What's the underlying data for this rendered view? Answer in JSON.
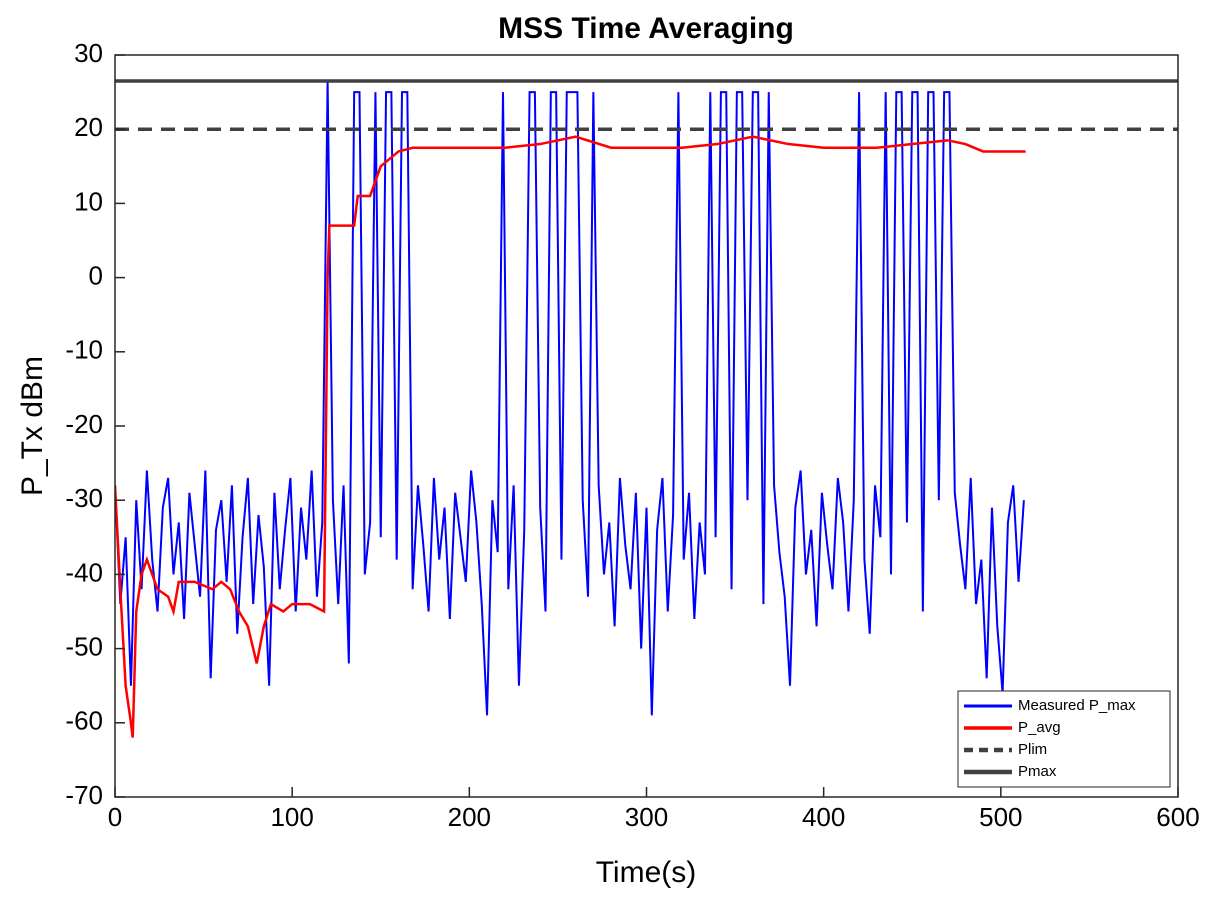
{
  "chart_data": {
    "type": "line",
    "title": "MSS Time Averaging",
    "x_label": "Time(s)",
    "y_label": "P_Tx dBm",
    "xlim": [
      0,
      600
    ],
    "xticks": [
      0,
      100,
      200,
      300,
      400,
      500,
      600
    ],
    "ylim": [
      -70,
      30
    ],
    "yticks": [
      -70,
      -60,
      -50,
      -40,
      -30,
      -20,
      -10,
      0,
      10,
      20,
      30
    ],
    "grid": false,
    "legend": "lower right",
    "series": [
      {
        "name": "Measured P_max",
        "color": "#0000ff",
        "line_style": "solid",
        "x": [
          0,
          3,
          6,
          9,
          12,
          15,
          18,
          21,
          24,
          27,
          30,
          33,
          36,
          39,
          42,
          45,
          48,
          51,
          54,
          57,
          60,
          63,
          66,
          69,
          72,
          75,
          78,
          81,
          84,
          87,
          90,
          93,
          96,
          99,
          102,
          105,
          108,
          111,
          114,
          117,
          120,
          123,
          126,
          129,
          132,
          135,
          138,
          141,
          144,
          147,
          150,
          153,
          156,
          159,
          162,
          165,
          168,
          171,
          174,
          177,
          180,
          183,
          186,
          189,
          192,
          195,
          198,
          201,
          204,
          207,
          210,
          213,
          216,
          219,
          222,
          225,
          228,
          231,
          234,
          237,
          240,
          243,
          246,
          249,
          252,
          255,
          258,
          261,
          264,
          267,
          270,
          273,
          276,
          279,
          282,
          285,
          288,
          291,
          294,
          297,
          300,
          303,
          306,
          309,
          312,
          315,
          318,
          321,
          324,
          327,
          330,
          333,
          336,
          339,
          342,
          345,
          348,
          351,
          354,
          357,
          360,
          363,
          366,
          369,
          372,
          375,
          378,
          381,
          384,
          387,
          390,
          393,
          396,
          399,
          402,
          405,
          408,
          411,
          414,
          417,
          420,
          423,
          426,
          429,
          432,
          435,
          438,
          441,
          444,
          447,
          450,
          453,
          456,
          459,
          462,
          465,
          468,
          471,
          474,
          477,
          480,
          483,
          486,
          489,
          492,
          495,
          498,
          501,
          504,
          507,
          510,
          513
        ],
        "values": [
          -28,
          -44,
          -35,
          -55,
          -30,
          -42,
          -26,
          -38,
          -45,
          -31,
          -27,
          -40,
          -33,
          -46,
          -29,
          -36,
          -43,
          -26,
          -54,
          -34,
          -30,
          -41,
          -28,
          -48,
          -35,
          -27,
          -44,
          -32,
          -39,
          -55,
          -29,
          -42,
          -34,
          -27,
          -45,
          -31,
          -38,
          -26,
          -43,
          -33,
          26.5,
          -30,
          -44,
          -28,
          -52,
          25,
          25,
          -40,
          -33,
          25,
          -35,
          25,
          25,
          -38,
          25,
          25,
          -42,
          -28,
          -36,
          -45,
          -27,
          -38,
          -31,
          -46,
          -29,
          -35,
          -41,
          -26,
          -33,
          -44,
          -59,
          -30,
          -37,
          25,
          -42,
          -28,
          -55,
          -34,
          25,
          25,
          -31,
          -45,
          25,
          25,
          -38,
          25,
          25,
          25,
          -30,
          -43,
          25,
          -28,
          -40,
          -33,
          -47,
          -27,
          -36,
          -42,
          -29,
          -50,
          -31,
          -59,
          -34,
          -27,
          -45,
          -32,
          25,
          -38,
          -29,
          -46,
          -33,
          -40,
          25,
          -35,
          25,
          25,
          -42,
          25,
          25,
          -30,
          25,
          25,
          -44,
          25,
          -28,
          -37,
          -43,
          -55,
          -31,
          -26,
          -40,
          -34,
          -47,
          -29,
          -36,
          -42,
          -27,
          -33,
          -45,
          -30,
          25,
          -38,
          -48,
          -28,
          -35,
          25,
          -40,
          25,
          25,
          -33,
          25,
          25,
          -45,
          25,
          25,
          -30,
          25,
          25,
          -29,
          -36,
          -42,
          -27,
          -44,
          -38,
          -54,
          -31,
          -47,
          -56,
          -33,
          -28,
          -41,
          -30
        ]
      },
      {
        "name": "P_avg",
        "color": "#ff0000",
        "line_style": "solid",
        "x": [
          0,
          3,
          6,
          9,
          10,
          12,
          15,
          18,
          21,
          24,
          30,
          33,
          36,
          45,
          55,
          60,
          65,
          70,
          75,
          78,
          80,
          84,
          88,
          95,
          100,
          110,
          118,
          120,
          121,
          135,
          137,
          144,
          150,
          160,
          168,
          200,
          220,
          240,
          260,
          280,
          320,
          340,
          360,
          380,
          400,
          430,
          450,
          470,
          480,
          490,
          514
        ],
        "values": [
          -28,
          -42,
          -55,
          -60,
          -62,
          -45,
          -40,
          -38,
          -40,
          -42,
          -43,
          -45,
          -41,
          -41,
          -42,
          -41,
          -42,
          -45,
          -47,
          -50,
          -52,
          -47,
          -44,
          -45,
          -44,
          -44,
          -45,
          0,
          7,
          7,
          11,
          11,
          15,
          17,
          17.5,
          17.5,
          17.5,
          18,
          19,
          17.5,
          17.5,
          18,
          19,
          18,
          17.5,
          17.5,
          18,
          18.5,
          18,
          17,
          17
        ]
      },
      {
        "name": "Plim",
        "color": "#404040",
        "line_style": "dashed",
        "x": [
          0,
          600
        ],
        "values": [
          20,
          20
        ]
      },
      {
        "name": "Pmax",
        "color": "#404040",
        "line_style": "solid",
        "x": [
          0,
          600
        ],
        "values": [
          26.5,
          26.5
        ]
      }
    ]
  }
}
